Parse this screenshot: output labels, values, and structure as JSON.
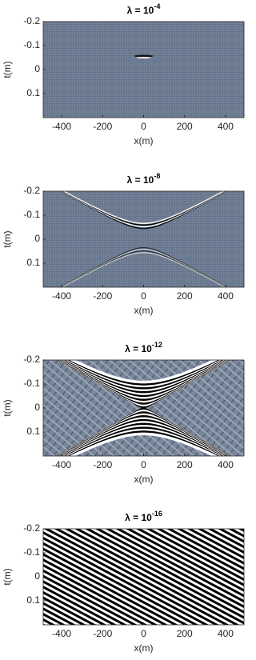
{
  "chart_data": [
    {
      "type": "image",
      "title": {
        "text": "λ = 10",
        "superscript": "-4"
      },
      "xlabel": "x(m)",
      "ylabel": "t(m)",
      "xlim": [
        -490,
        490
      ],
      "ylim": [
        -0.2,
        0.2
      ],
      "y_reversed": true,
      "xticks": [
        -400,
        -200,
        0,
        200,
        400
      ],
      "yticks": [
        -0.2,
        -0.1,
        0,
        0.1
      ]
    },
    {
      "type": "image",
      "title": {
        "text": "λ = 10",
        "superscript": "-8"
      },
      "xlabel": "x(m)",
      "ylabel": "t(m)",
      "xlim": [
        -490,
        490
      ],
      "ylim": [
        -0.2,
        0.2
      ],
      "y_reversed": true,
      "xticks": [
        -400,
        -200,
        0,
        200,
        400
      ],
      "yticks": [
        -0.2,
        -0.1,
        0,
        0.1
      ]
    },
    {
      "type": "image",
      "title": {
        "text": "λ = 10",
        "superscript": "-12"
      },
      "xlabel": "x(m)",
      "ylabel": "t(m)",
      "xlim": [
        -490,
        490
      ],
      "ylim": [
        -0.2,
        0.2
      ],
      "y_reversed": true,
      "xticks": [
        -400,
        -200,
        0,
        200,
        400
      ],
      "yticks": [
        -0.2,
        -0.1,
        0,
        0.1
      ]
    },
    {
      "type": "image",
      "title": {
        "text": "λ = 10",
        "superscript": "-16"
      },
      "xlabel": "x(m)",
      "ylabel": "t(m)",
      "xlim": [
        -490,
        490
      ],
      "ylim": [
        -0.2,
        0.2
      ],
      "y_reversed": true,
      "xticks": [
        -400,
        -200,
        0,
        200,
        400
      ],
      "yticks": [
        -0.2,
        -0.1,
        0,
        0.1
      ]
    }
  ]
}
